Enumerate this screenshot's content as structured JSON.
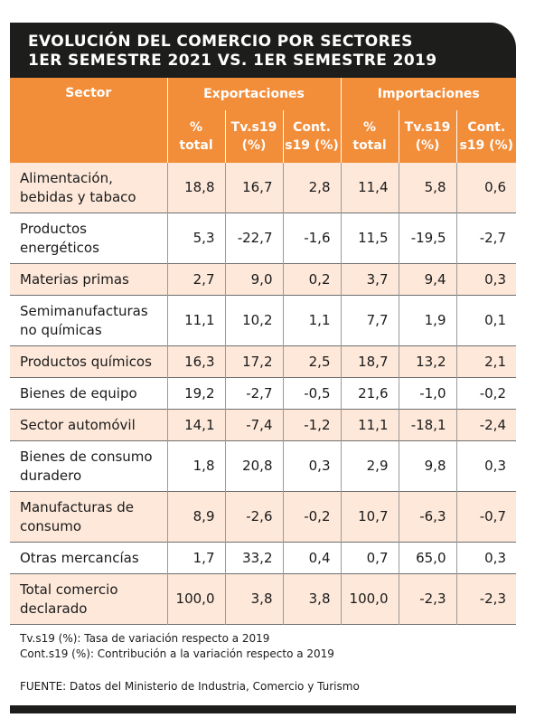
{
  "title": {
    "line1": "EVOLUCIÓN DEL COMERCIO POR SECTORES",
    "line2": "1ER SEMESTRE 2021 VS. 1ER SEMESTRE 2019"
  },
  "header": {
    "sector": "Sector",
    "exportaciones": "Exportaciones",
    "importaciones": "Importaciones",
    "pct_total_1": "%",
    "pct_total_2": "total",
    "tv_1": "Tv.s19",
    "tv_2": "(%)",
    "cont_1": "Cont.",
    "cont_2": "s19 (%)"
  },
  "rows": [
    {
      "sector_1": "Alimentación,",
      "sector_2": "bebidas y tabaco",
      "exp_total": "18,8",
      "exp_tv": "16,7",
      "exp_cont": "2,8",
      "imp_total": "11,4",
      "imp_tv": "5,8",
      "imp_cont": "0,6"
    },
    {
      "sector_1": "Productos",
      "sector_2": "energéticos",
      "exp_total": "5,3",
      "exp_tv": "-22,7",
      "exp_cont": "-1,6",
      "imp_total": "11,5",
      "imp_tv": "-19,5",
      "imp_cont": "-2,7"
    },
    {
      "sector_1": "Materias primas",
      "sector_2": "",
      "exp_total": "2,7",
      "exp_tv": "9,0",
      "exp_cont": "0,2",
      "imp_total": "3,7",
      "imp_tv": "9,4",
      "imp_cont": "0,3"
    },
    {
      "sector_1": "Semimanufacturas",
      "sector_2": "no químicas",
      "exp_total": "11,1",
      "exp_tv": "10,2",
      "exp_cont": "1,1",
      "imp_total": "7,7",
      "imp_tv": "1,9",
      "imp_cont": "0,1"
    },
    {
      "sector_1": "Productos químicos",
      "sector_2": "",
      "exp_total": "16,3",
      "exp_tv": "17,2",
      "exp_cont": "2,5",
      "imp_total": "18,7",
      "imp_tv": "13,2",
      "imp_cont": "2,1"
    },
    {
      "sector_1": "Bienes de equipo",
      "sector_2": "",
      "exp_total": "19,2",
      "exp_tv": "-2,7",
      "exp_cont": "-0,5",
      "imp_total": "21,6",
      "imp_tv": "-1,0",
      "imp_cont": "-0,2"
    },
    {
      "sector_1": "Sector automóvil",
      "sector_2": "",
      "exp_total": "14,1",
      "exp_tv": "-7,4",
      "exp_cont": "-1,2",
      "imp_total": "11,1",
      "imp_tv": "-18,1",
      "imp_cont": "-2,4"
    },
    {
      "sector_1": "Bienes de consumo",
      "sector_2": "duradero",
      "exp_total": "1,8",
      "exp_tv": "20,8",
      "exp_cont": "0,3",
      "imp_total": "2,9",
      "imp_tv": "9,8",
      "imp_cont": "0,3"
    },
    {
      "sector_1": "Manufacturas de",
      "sector_2": "consumo",
      "exp_total": "8,9",
      "exp_tv": "-2,6",
      "exp_cont": "-0,2",
      "imp_total": "10,7",
      "imp_tv": "-6,3",
      "imp_cont": "-0,7"
    },
    {
      "sector_1": "Otras mercancías",
      "sector_2": "",
      "exp_total": "1,7",
      "exp_tv": "33,2",
      "exp_cont": "0,4",
      "imp_total": "0,7",
      "imp_tv": "65,0",
      "imp_cont": "0,3"
    },
    {
      "sector_1": "Total comercio",
      "sector_2": "declarado",
      "exp_total": "100,0",
      "exp_tv": "3,8",
      "exp_cont": "3,8",
      "imp_total": "100,0",
      "imp_tv": "-2,3",
      "imp_cont": "-2,3"
    }
  ],
  "notes": {
    "tv": "Tv.s19 (%): Tasa de variación respecto a 2019",
    "cont": "Cont.s19 (%): Contribución a la variación respecto a 2019",
    "source": "FUENTE: Datos del Ministerio de Industria, Comercio y Turismo"
  },
  "colors": {
    "header_bg": "#f28d3a",
    "title_bg": "#1d1d1b",
    "odd_row_bg": "#fde8da"
  }
}
